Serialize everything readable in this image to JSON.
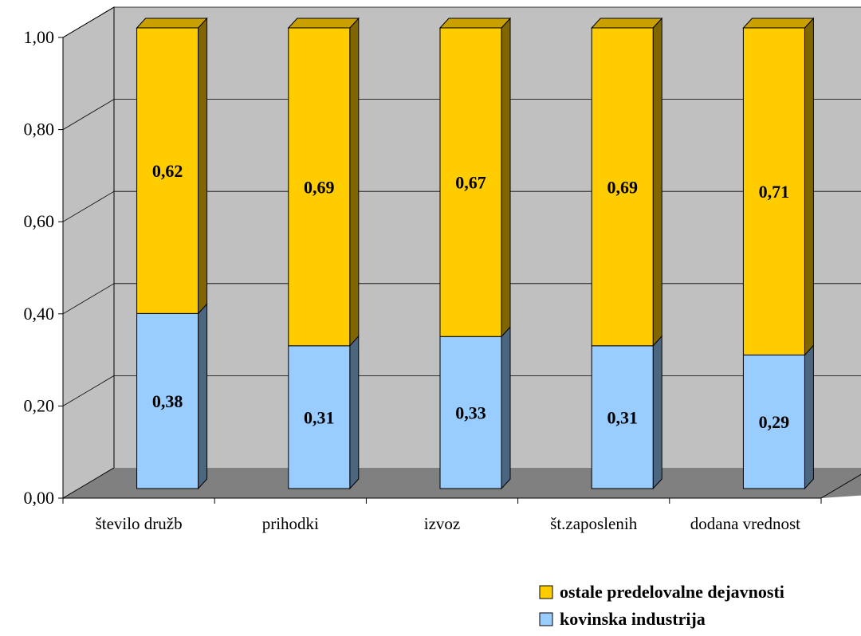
{
  "chart_data": {
    "type": "bar",
    "stacked": true,
    "three_d": true,
    "categories": [
      "število družb",
      "prihodki",
      "izvoz",
      "št.zaposlenih",
      "dodana vrednost"
    ],
    "series": [
      {
        "name": "kovinska industrija",
        "values": [
          0.38,
          0.31,
          0.33,
          0.31,
          0.29
        ],
        "labels": [
          "0,38",
          "0,31",
          "0,33",
          "0,31",
          "0,29"
        ],
        "color": "#99CCFF",
        "side_color": "#4D6680",
        "top_color": "#99CCFF"
      },
      {
        "name": "ostale predelovalne dejavnosti",
        "values": [
          0.62,
          0.69,
          0.67,
          0.69,
          0.71
        ],
        "labels": [
          "0,62",
          "0,69",
          "0,67",
          "0,69",
          "0,71"
        ],
        "color": "#FFCC00",
        "side_color": "#806600",
        "top_color": "#C9A000"
      }
    ],
    "ylim": [
      0,
      1
    ],
    "yticks": [
      "0,00",
      "0,20",
      "0,40",
      "0,60",
      "0,80",
      "1,00"
    ],
    "grid": true,
    "legend_position": "bottom-right",
    "legend_order": [
      "ostale predelovalne dejavnosti",
      "kovinska industrija"
    ],
    "colors": {
      "wall": "#C0C0C0",
      "floor": "#808080",
      "grid": "#000000"
    }
  }
}
